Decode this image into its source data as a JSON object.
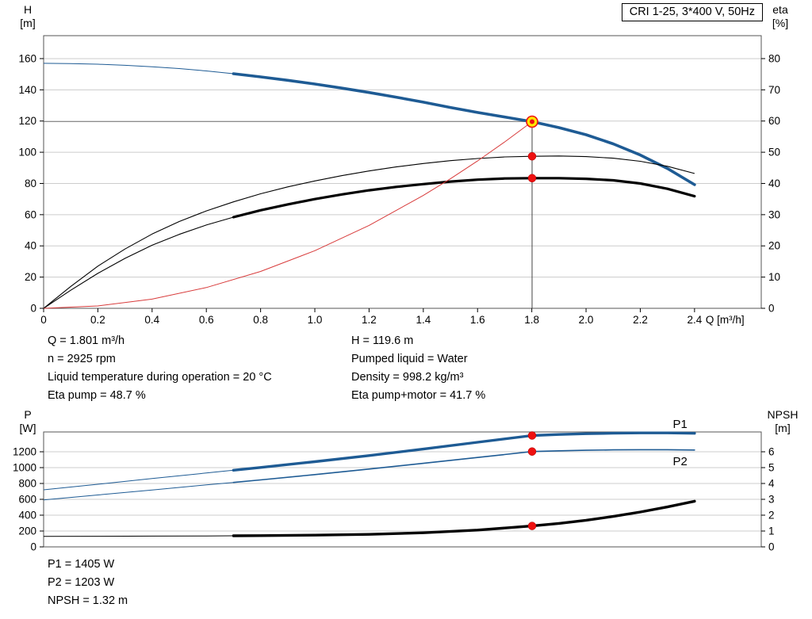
{
  "title_box": "CRI 1-25, 3*400 V, 50Hz",
  "colors": {
    "curve_blue": "#1e5b94",
    "curve_black": "#000000",
    "curve_red": "#d83b3b",
    "marker_red": "#ee1111",
    "marker_yellow": "#ffe800",
    "grid": "#cccccc",
    "marker_line": "#8c8c8c",
    "frame": "#555555"
  },
  "info_top": {
    "left": [
      "Q = 1.801 m³/h",
      "n = 2925 rpm",
      "Liquid temperature during operation = 20 °C",
      "Eta pump = 48.7 %"
    ],
    "right": [
      "H = 119.6 m",
      "Pumped liquid = Water",
      "Density = 998.2 kg/m³",
      "Eta pump+motor = 41.7 %"
    ]
  },
  "info_bottom": [
    "P1 = 1405 W",
    "P2 = 1203 W",
    "NPSH = 1.32 m"
  ],
  "chart_data": [
    {
      "type": "line",
      "name": "qh-eta-chart",
      "x_axis": {
        "label": "Q [m³/h]",
        "min": 0,
        "max": 2.646,
        "tick_values": [
          0,
          0.2,
          0.4,
          0.6,
          0.8,
          1.0,
          1.2,
          1.4,
          1.6,
          1.8,
          2.0,
          2.2,
          2.4
        ],
        "tick_labels": [
          "0",
          "0.2",
          "0.4",
          "0.6",
          "0.8",
          "1.0",
          "1.2",
          "1.4",
          "1.6",
          "1.8",
          "2.0",
          "2.2",
          "2.4"
        ]
      },
      "y_left": {
        "label": [
          "H",
          "[m]"
        ],
        "min": 0,
        "max": 174.7,
        "ticks": [
          0,
          20,
          40,
          60,
          80,
          100,
          120,
          140,
          160
        ]
      },
      "y_right": {
        "label": [
          "eta",
          "[%]"
        ],
        "min": 0,
        "max": 87.35,
        "ticks": [
          0,
          10,
          20,
          30,
          40,
          50,
          60,
          70,
          80
        ]
      },
      "series": [
        {
          "name": "head-curve",
          "axis": "left",
          "color": "blue",
          "width_thin": 1,
          "width_thick": 3.6,
          "thick_from": 0.7,
          "points": [
            [
              0,
              157
            ],
            [
              0.1,
              156.8
            ],
            [
              0.2,
              156.4
            ],
            [
              0.3,
              155.7
            ],
            [
              0.4,
              154.8
            ],
            [
              0.5,
              153.6
            ],
            [
              0.6,
              152.1
            ],
            [
              0.7,
              150.3
            ],
            [
              0.8,
              148.3
            ],
            [
              0.9,
              146.1
            ],
            [
              1.0,
              143.7
            ],
            [
              1.1,
              141.1
            ],
            [
              1.2,
              138.3
            ],
            [
              1.3,
              135.3
            ],
            [
              1.4,
              132.1
            ],
            [
              1.5,
              128.7
            ],
            [
              1.6,
              125.5
            ],
            [
              1.7,
              122.6
            ],
            [
              1.801,
              119.6
            ],
            [
              1.9,
              115.8
            ],
            [
              2.0,
              111.2
            ],
            [
              2.1,
              105.4
            ],
            [
              2.2,
              98.2
            ],
            [
              2.3,
              89.6
            ],
            [
              2.4,
              79.2
            ]
          ]
        },
        {
          "name": "eta-pump-curve",
          "axis": "right",
          "color": "black",
          "width_thin": 1.1,
          "points": [
            [
              0,
              0
            ],
            [
              0.1,
              7
            ],
            [
              0.2,
              13.5
            ],
            [
              0.3,
              19
            ],
            [
              0.4,
              23.8
            ],
            [
              0.5,
              27.8
            ],
            [
              0.6,
              31.2
            ],
            [
              0.7,
              34.1
            ],
            [
              0.8,
              36.7
            ],
            [
              0.9,
              38.9
            ],
            [
              1.0,
              40.8
            ],
            [
              1.1,
              42.5
            ],
            [
              1.2,
              44.0
            ],
            [
              1.3,
              45.3
            ],
            [
              1.4,
              46.4
            ],
            [
              1.5,
              47.3
            ],
            [
              1.6,
              48.0
            ],
            [
              1.7,
              48.5
            ],
            [
              1.801,
              48.7
            ],
            [
              1.9,
              48.8
            ],
            [
              2.0,
              48.6
            ],
            [
              2.1,
              48.1
            ],
            [
              2.2,
              47.1
            ],
            [
              2.3,
              45.5
            ],
            [
              2.4,
              43.2
            ]
          ]
        },
        {
          "name": "eta-pump-motor-curve",
          "axis": "right",
          "color": "black",
          "width_thin": 1.1,
          "width_thick": 3.2,
          "thick_from": 0.7,
          "points": [
            [
              0,
              0
            ],
            [
              0.1,
              5.8
            ],
            [
              0.2,
              11.2
            ],
            [
              0.3,
              16.0
            ],
            [
              0.4,
              20.2
            ],
            [
              0.5,
              23.7
            ],
            [
              0.6,
              26.7
            ],
            [
              0.7,
              29.2
            ],
            [
              0.8,
              31.4
            ],
            [
              0.9,
              33.3
            ],
            [
              1.0,
              35.0
            ],
            [
              1.1,
              36.5
            ],
            [
              1.2,
              37.8
            ],
            [
              1.3,
              38.9
            ],
            [
              1.4,
              39.8
            ],
            [
              1.5,
              40.6
            ],
            [
              1.6,
              41.2
            ],
            [
              1.7,
              41.6
            ],
            [
              1.801,
              41.7
            ],
            [
              1.9,
              41.7
            ],
            [
              2.0,
              41.5
            ],
            [
              2.1,
              41.0
            ],
            [
              2.2,
              40.0
            ],
            [
              2.3,
              38.3
            ],
            [
              2.4,
              35.9
            ]
          ]
        },
        {
          "name": "system-curve",
          "axis": "left",
          "color": "red",
          "width_thin": 1,
          "points": [
            [
              0,
              0
            ],
            [
              0.2,
              1.5
            ],
            [
              0.4,
              5.9
            ],
            [
              0.6,
              13.3
            ],
            [
              0.8,
              23.6
            ],
            [
              1.0,
              36.9
            ],
            [
              1.2,
              53.1
            ],
            [
              1.4,
              72.3
            ],
            [
              1.5,
              83.0
            ],
            [
              1.6,
              94.4
            ],
            [
              1.7,
              106.6
            ],
            [
              1.801,
              119.6
            ]
          ]
        }
      ],
      "marker": {
        "q": 1.801,
        "h": 119.6
      },
      "dots": [
        {
          "q": 1.801,
          "y": 119.6,
          "axis": "left",
          "style": "op"
        },
        {
          "q": 1.801,
          "y": 48.7,
          "axis": "right",
          "style": "dot"
        },
        {
          "q": 1.801,
          "y": 41.7,
          "axis": "right",
          "style": "dot"
        }
      ]
    },
    {
      "type": "line",
      "name": "power-npsh-chart",
      "x_axis": {
        "label": "",
        "min": 0,
        "max": 2.646,
        "tick_values": [],
        "tick_labels": []
      },
      "y_left": {
        "label": [
          "P",
          "[W]"
        ],
        "min": 0,
        "max": 1450,
        "ticks": [
          0,
          200,
          400,
          600,
          800,
          1000,
          1200
        ]
      },
      "y_right": {
        "label": [
          "NPSH",
          "[m]"
        ],
        "min": 0,
        "max": 7.25,
        "ticks": [
          0,
          1,
          2,
          3,
          4,
          5,
          6
        ]
      },
      "series": [
        {
          "name": "p1-curve",
          "axis": "left",
          "color": "blue",
          "width_thin": 1,
          "width_thick": 3.4,
          "thick_from": 0.7,
          "points": [
            [
              0,
              720
            ],
            [
              0.2,
              790
            ],
            [
              0.4,
              862
            ],
            [
              0.6,
              932
            ],
            [
              0.7,
              967
            ],
            [
              0.8,
              1002
            ],
            [
              1.0,
              1075
            ],
            [
              1.2,
              1152
            ],
            [
              1.4,
              1234
            ],
            [
              1.6,
              1320
            ],
            [
              1.801,
              1405
            ],
            [
              1.9,
              1418
            ],
            [
              2.0,
              1428
            ],
            [
              2.1,
              1434
            ],
            [
              2.2,
              1438
            ],
            [
              2.3,
              1438
            ],
            [
              2.4,
              1433
            ]
          ]
        },
        {
          "name": "p2-curve",
          "axis": "left",
          "color": "blue",
          "width_thin": 1,
          "width_thick": 1.6,
          "thick_from": 0.7,
          "points": [
            [
              0,
              592
            ],
            [
              0.2,
              655
            ],
            [
              0.4,
              718
            ],
            [
              0.6,
              782
            ],
            [
              0.7,
              813
            ],
            [
              0.8,
              845
            ],
            [
              1.0,
              912
            ],
            [
              1.2,
              982
            ],
            [
              1.4,
              1054
            ],
            [
              1.6,
              1128
            ],
            [
              1.801,
              1203
            ],
            [
              1.9,
              1212
            ],
            [
              2.0,
              1219
            ],
            [
              2.1,
              1224
            ],
            [
              2.2,
              1226
            ],
            [
              2.3,
              1226
            ],
            [
              2.4,
              1222
            ]
          ]
        },
        {
          "name": "npsh-curve",
          "axis": "right",
          "color": "black",
          "width_thin": 1,
          "width_thick": 3.4,
          "thick_from": 0.7,
          "points": [
            [
              0,
              0.66
            ],
            [
              0.2,
              0.67
            ],
            [
              0.4,
              0.68
            ],
            [
              0.6,
              0.69
            ],
            [
              0.7,
              0.7
            ],
            [
              0.8,
              0.71
            ],
            [
              1.0,
              0.74
            ],
            [
              1.2,
              0.79
            ],
            [
              1.4,
              0.89
            ],
            [
              1.6,
              1.06
            ],
            [
              1.801,
              1.32
            ],
            [
              1.9,
              1.48
            ],
            [
              2.0,
              1.68
            ],
            [
              2.1,
              1.92
            ],
            [
              2.2,
              2.2
            ],
            [
              2.3,
              2.52
            ],
            [
              2.4,
              2.88
            ]
          ]
        }
      ],
      "curve_labels": [
        {
          "text": "P1",
          "q": 2.32,
          "y": 1500,
          "axis": "left"
        },
        {
          "text": "P2",
          "q": 2.32,
          "y": 1030,
          "axis": "left"
        }
      ],
      "dots": [
        {
          "q": 1.801,
          "y": 1405,
          "axis": "left",
          "style": "dot"
        },
        {
          "q": 1.801,
          "y": 1203,
          "axis": "left",
          "style": "dot"
        },
        {
          "q": 1.801,
          "y": 1.32,
          "axis": "right",
          "style": "dot"
        }
      ]
    }
  ]
}
